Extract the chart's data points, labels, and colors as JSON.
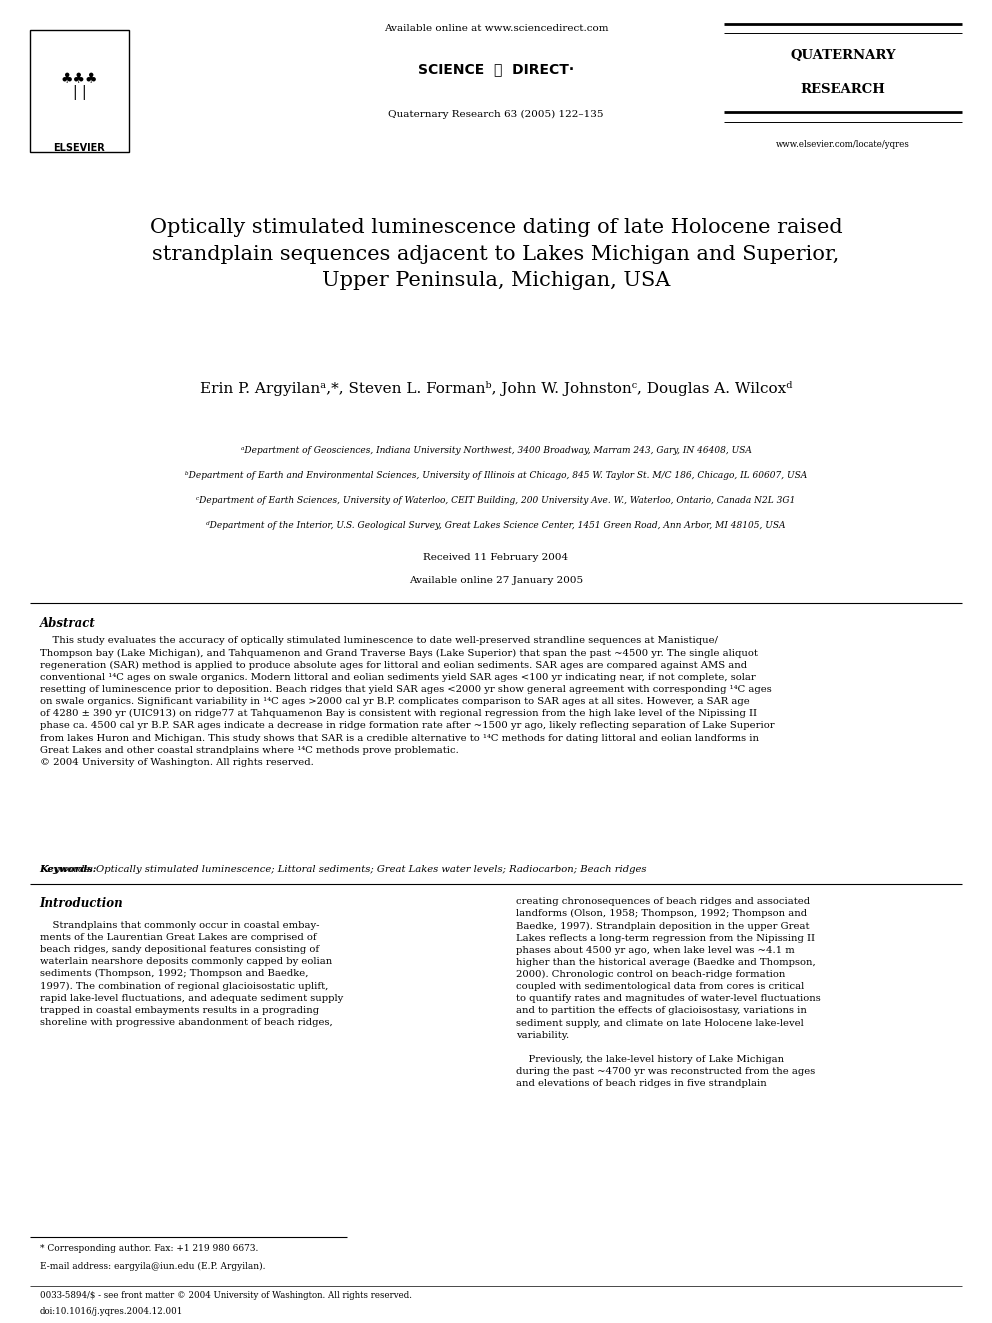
{
  "page_width": 9.92,
  "page_height": 13.23,
  "bg_color": "#ffffff",
  "header_available_online": "Available online at www.sciencedirect.com",
  "header_sciencedirect": "SCIENCE  ⓓ  DIRECT·",
  "header_journal_ref": "Quaternary Research 63 (2005) 122–135",
  "header_journal_name_line1": "QUATERNARY",
  "header_journal_name_line2": "RESEARCH",
  "header_elsevier": "ELSEVIER",
  "header_website": "www.elsevier.com/locate/yqres",
  "title": "Optically stimulated luminescence dating of late Holocene raised\nstrandplain sequences adjacent to Lakes Michigan and Superior,\nUpper Peninsula, Michigan, USA",
  "authors": "Erin P. Argyilanᵃ,*, Steven L. Formanᵇ, John W. Johnstonᶜ, Douglas A. Wilcoxᵈ",
  "affiliations": [
    "ᵃDepartment of Geosciences, Indiana University Northwest, 3400 Broadway, Marram 243, Gary, IN 46408, USA",
    "ᵇDepartment of Earth and Environmental Sciences, University of Illinois at Chicago, 845 W. Taylor St. M/C 186, Chicago, IL 60607, USA",
    "ᶜDepartment of Earth Sciences, University of Waterloo, CEIT Building, 200 University Ave. W., Waterloo, Ontario, Canada N2L 3G1",
    "ᵈDepartment of the Interior, U.S. Geological Survey, Great Lakes Science Center, 1451 Green Road, Ann Arbor, MI 48105, USA"
  ],
  "received": "Received 11 February 2004",
  "available_online_date": "Available online 27 January 2005",
  "abstract_title": "Abstract",
  "abstract_text": "    This study evaluates the accuracy of optically stimulated luminescence to date well-preserved strandline sequences at Manistique/\nThompson bay (Lake Michigan), and Tahquamenon and Grand Traverse Bays (Lake Superior) that span the past ~4500 yr. The single aliquot\nregeneration (SAR) method is applied to produce absolute ages for littoral and eolian sediments. SAR ages are compared against AMS and\nconventional ¹⁴C ages on swale organics. Modern littoral and eolian sediments yield SAR ages <100 yr indicating near, if not complete, solar\nresetting of luminescence prior to deposition. Beach ridges that yield SAR ages <2000 yr show general agreement with corresponding ¹⁴C ages\non swale organics. Significant variability in ¹⁴C ages >2000 cal yr B.P. complicates comparison to SAR ages at all sites. However, a SAR age\nof 4280 ± 390 yr (UIC913) on ridge77 at Tahquamenon Bay is consistent with regional regression from the high lake level of the Nipissing II\nphase ca. 4500 cal yr B.P. SAR ages indicate a decrease in ridge formation rate after ~1500 yr ago, likely reflecting separation of Lake Superior\nfrom lakes Huron and Michigan. This study shows that SAR is a credible alternative to ¹⁴C methods for dating littoral and eolian landforms in\nGreat Lakes and other coastal strandplains where ¹⁴C methods prove problematic.\n© 2004 University of Washington. All rights reserved.",
  "keywords": "Keywords: Optically stimulated luminescence; Littoral sediments; Great Lakes water levels; Radiocarbon; Beach ridges",
  "intro_title": "Introduction",
  "intro_col1": "    Strandplains that commonly occur in coastal embay-\nments of the Laurentian Great Lakes are comprised of\nbeach ridges, sandy depositional features consisting of\nwaterlain nearshore deposits commonly capped by eolian\nsediments (Thompson, 1992; Thompson and Baedke,\n1997). The combination of regional glacioisostatic uplift,\nrapid lake-level fluctuations, and adequate sediment supply\ntrapped in coastal embayments results in a prograding\nshoreline with progressive abandonment of beach ridges,",
  "intro_col2": "creating chronosequences of beach ridges and associated\nlandforms (Olson, 1958; Thompson, 1992; Thompson and\nBaedke, 1997). Strandplain deposition in the upper Great\nLakes reflects a long-term regression from the Nipissing II\nphases about 4500 yr ago, when lake level was ~4.1 m\nhigher than the historical average (Baedke and Thompson,\n2000). Chronologic control on beach-ridge formation\ncoupled with sedimentological data from cores is critical\nto quantify rates and magnitudes of water-level fluctuations\nand to partition the effects of glacioisostasy, variations in\nsediment supply, and climate on late Holocene lake-level\nvariability.\n\n    Previously, the lake-level history of Lake Michigan\nduring the past ~4700 yr was reconstructed from the ages\nand elevations of beach ridges in five strandplain",
  "footnote_star": "* Corresponding author. Fax: +1 219 980 6673.",
  "footnote_email": "E-mail address: eargyila@iun.edu (E.P. Argyilan).",
  "footer_issn": "0033-5894/$ - see front matter © 2004 University of Washington. All rights reserved.",
  "footer_doi": "doi:10.1016/j.yqres.2004.12.001"
}
